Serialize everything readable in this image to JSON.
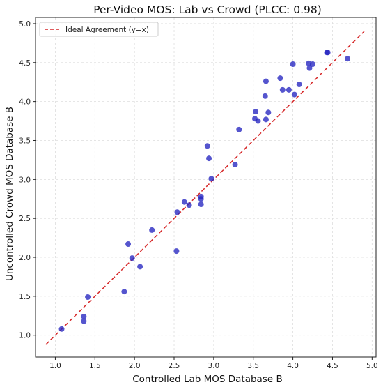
{
  "chart_data": {
    "type": "scatter",
    "title": "Per-Video MOS: Lab vs Crowd (PLCC: 0.98)",
    "xlabel": "Controlled Lab MOS Database B",
    "ylabel": "Uncontrolled Crowd MOS Database B",
    "xlim": [
      0.75,
      5.05
    ],
    "ylim": [
      0.72,
      5.08
    ],
    "xticks": [
      "1.0",
      "1.5",
      "2.0",
      "2.5",
      "3.0",
      "3.5",
      "4.0",
      "4.5",
      "5.0"
    ],
    "yticks": [
      "1.0",
      "1.5",
      "2.0",
      "2.5",
      "3.0",
      "3.5",
      "4.0",
      "4.5",
      "5.0"
    ],
    "grid": true,
    "legend_position": "top-left",
    "ideal_line": {
      "label": "Ideal Agreement (y=x)",
      "from": 0.88,
      "to": 4.9,
      "color": "#d62728"
    },
    "point_color": "#2525c0",
    "points": [
      [
        1.08,
        1.08
      ],
      [
        1.36,
        1.18
      ],
      [
        1.36,
        1.24
      ],
      [
        1.41,
        1.49
      ],
      [
        1.87,
        1.56
      ],
      [
        1.92,
        2.17
      ],
      [
        1.97,
        1.99
      ],
      [
        2.07,
        1.88
      ],
      [
        2.22,
        2.35
      ],
      [
        2.53,
        2.08
      ],
      [
        2.54,
        2.58
      ],
      [
        2.63,
        2.71
      ],
      [
        2.69,
        2.67
      ],
      [
        2.84,
        2.68
      ],
      [
        2.84,
        2.75
      ],
      [
        2.84,
        2.78
      ],
      [
        2.92,
        3.43
      ],
      [
        2.94,
        3.27
      ],
      [
        2.97,
        3.01
      ],
      [
        3.27,
        3.19
      ],
      [
        3.32,
        3.64
      ],
      [
        3.52,
        3.78
      ],
      [
        3.53,
        3.87
      ],
      [
        3.56,
        3.75
      ],
      [
        3.65,
        4.07
      ],
      [
        3.66,
        4.26
      ],
      [
        3.66,
        3.77
      ],
      [
        3.69,
        3.86
      ],
      [
        3.84,
        4.3
      ],
      [
        3.87,
        4.15
      ],
      [
        3.95,
        4.15
      ],
      [
        4.0,
        4.48
      ],
      [
        4.02,
        4.09
      ],
      [
        4.08,
        4.22
      ],
      [
        4.2,
        4.49
      ],
      [
        4.21,
        4.43
      ],
      [
        4.25,
        4.48
      ],
      [
        4.43,
        4.63
      ],
      [
        4.44,
        4.63
      ],
      [
        4.69,
        4.55
      ]
    ]
  }
}
